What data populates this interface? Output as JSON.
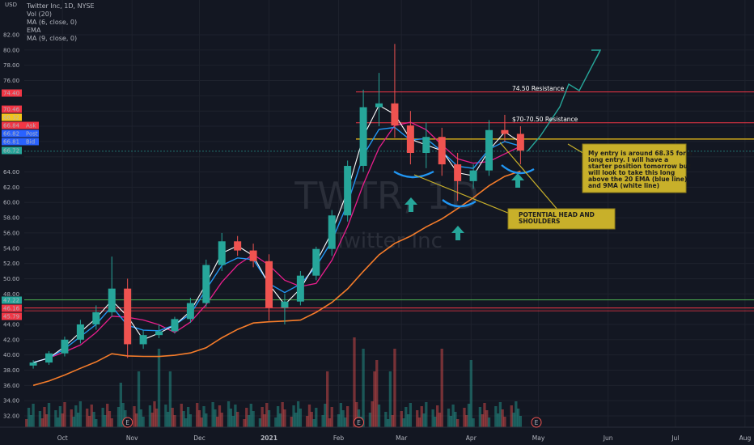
{
  "header": {
    "currency": "USD",
    "symbol_line": "Twitter Inc, 1D, NYSE",
    "indicators": [
      "Vol (20)",
      "MA (6, close, 0)",
      "EMA",
      "MA (9, close, 0)"
    ]
  },
  "watermark": {
    "ticker": "TWTR, 1D",
    "name": "Twitter Inc"
  },
  "colors": {
    "background": "#131722",
    "candle_up": "#26a69a",
    "candle_down": "#ef5350",
    "ma6": "#ffffff",
    "ema20": "#2196f3",
    "ma9": "#e91e8c",
    "ma200": "#f57c2a",
    "resistance": "#f23645",
    "support_green": "#4caf50",
    "note_fill": "#c8b02a"
  },
  "y_axis": {
    "ticks": [
      "82.00",
      "80.00",
      "78.00",
      "76.00",
      "74.40",
      "72.00",
      "70.46",
      "68.32",
      "66.84",
      "66.82",
      "66.81",
      "66.72",
      "64.00",
      "62.00",
      "60.00",
      "58.00",
      "56.00",
      "54.00",
      "52.00",
      "50.00",
      "48.00",
      "47.22",
      "46.16",
      "45.79",
      "44.00",
      "42.00",
      "40.00",
      "38.00",
      "36.00",
      "34.00",
      "32.00"
    ],
    "price_tags": [
      {
        "value": "74.40",
        "color": "#f23645"
      },
      {
        "value": "70.46",
        "color": "#f23645"
      },
      {
        "value": "68.32",
        "color": "#f5c518"
      },
      {
        "value": "66.84",
        "color": "#f23645",
        "label": "Ask"
      },
      {
        "value": "66.82",
        "color": "#2962ff",
        "label": "Post"
      },
      {
        "value": "66.81",
        "color": "#2962ff",
        "label": "Bid"
      },
      {
        "value": "66.72",
        "color": "#26a69a"
      },
      {
        "value": "47.22",
        "color": "#26a69a"
      },
      {
        "value": "46.16",
        "color": "#f23645"
      },
      {
        "value": "45.79",
        "color": "#f23645"
      }
    ]
  },
  "x_axis": {
    "labels": [
      "Oct",
      "Nov",
      "Dec",
      "2021",
      "Feb",
      "Mar",
      "Apr",
      "May",
      "Jun",
      "Jul",
      "Aug"
    ]
  },
  "annotations": {
    "resistance_1": "74.50 Resistance",
    "resistance_2": "$70-70.50 Resistance",
    "head_shoulders": "POTENTIAL HEAD AND SHOULDERS",
    "entry_note": "My entry is around 68.35 for a long entry. I will have a starter position tomorrow but will look to take this long above the 20 EMA (blue line) and 9MA (white line)",
    "earnings_marker": "E"
  },
  "chart_data": {
    "type": "candlestick",
    "title": "Twitter Inc, 1D, NYSE",
    "ylim": [
      31,
      83.5
    ],
    "x_range": [
      "2020-09-14",
      "2021-08-05"
    ],
    "ohlc": [
      {
        "date": "2020-09-18",
        "o": 38.6,
        "h": 39.3,
        "l": 38.2,
        "c": 39.0
      },
      {
        "date": "2020-09-25",
        "o": 39.0,
        "h": 40.5,
        "l": 38.7,
        "c": 40.2
      },
      {
        "date": "2020-10-02",
        "o": 40.2,
        "h": 42.4,
        "l": 39.8,
        "c": 42.0
      },
      {
        "date": "2020-10-09",
        "o": 42.0,
        "h": 44.6,
        "l": 41.5,
        "c": 44.0
      },
      {
        "date": "2020-10-16",
        "o": 44.0,
        "h": 46.5,
        "l": 43.3,
        "c": 45.6
      },
      {
        "date": "2020-10-23",
        "o": 45.6,
        "h": 52.9,
        "l": 45.0,
        "c": 48.7
      },
      {
        "date": "2020-10-30",
        "o": 48.7,
        "h": 50.0,
        "l": 39.6,
        "c": 41.4
      },
      {
        "date": "2020-11-06",
        "o": 41.4,
        "h": 43.2,
        "l": 40.8,
        "c": 42.6
      },
      {
        "date": "2020-11-13",
        "o": 42.6,
        "h": 44.0,
        "l": 42.2,
        "c": 43.1
      },
      {
        "date": "2020-11-20",
        "o": 43.1,
        "h": 45.0,
        "l": 42.8,
        "c": 44.7
      },
      {
        "date": "2020-11-27",
        "o": 44.7,
        "h": 47.5,
        "l": 44.2,
        "c": 46.8
      },
      {
        "date": "2020-12-04",
        "o": 46.8,
        "h": 52.5,
        "l": 46.3,
        "c": 51.8
      },
      {
        "date": "2020-12-11",
        "o": 51.8,
        "h": 56.0,
        "l": 51.0,
        "c": 54.9
      },
      {
        "date": "2020-12-18",
        "o": 54.9,
        "h": 55.6,
        "l": 53.0,
        "c": 53.7
      },
      {
        "date": "2020-12-25",
        "o": 53.7,
        "h": 54.6,
        "l": 51.5,
        "c": 52.3
      },
      {
        "date": "2021-01-01",
        "o": 52.3,
        "h": 53.2,
        "l": 44.5,
        "c": 46.2
      },
      {
        "date": "2021-01-08",
        "o": 46.2,
        "h": 48.0,
        "l": 44.0,
        "c": 47.0
      },
      {
        "date": "2021-01-15",
        "o": 47.0,
        "h": 51.0,
        "l": 46.5,
        "c": 50.4
      },
      {
        "date": "2021-01-22",
        "o": 50.4,
        "h": 54.2,
        "l": 49.8,
        "c": 53.9
      },
      {
        "date": "2021-01-29",
        "o": 53.9,
        "h": 59.0,
        "l": 53.0,
        "c": 58.3
      },
      {
        "date": "2021-02-05",
        "o": 58.3,
        "h": 65.5,
        "l": 57.5,
        "c": 64.8
      },
      {
        "date": "2021-02-12",
        "o": 64.8,
        "h": 74.8,
        "l": 64.0,
        "c": 72.5
      },
      {
        "date": "2021-02-19",
        "o": 72.5,
        "h": 77.0,
        "l": 70.0,
        "c": 73.0
      },
      {
        "date": "2021-02-26",
        "o": 73.0,
        "h": 80.8,
        "l": 68.5,
        "c": 70.1
      },
      {
        "date": "2021-03-05",
        "o": 70.1,
        "h": 72.0,
        "l": 65.0,
        "c": 66.5
      },
      {
        "date": "2021-03-12",
        "o": 66.5,
        "h": 70.5,
        "l": 64.5,
        "c": 68.6
      },
      {
        "date": "2021-03-19",
        "o": 68.6,
        "h": 69.8,
        "l": 63.5,
        "c": 65.0
      },
      {
        "date": "2021-03-26",
        "o": 65.0,
        "h": 66.5,
        "l": 60.2,
        "c": 62.8
      },
      {
        "date": "2021-04-02",
        "o": 62.8,
        "h": 65.0,
        "l": 61.8,
        "c": 64.2
      },
      {
        "date": "2021-04-09",
        "o": 64.2,
        "h": 70.8,
        "l": 63.5,
        "c": 69.5
      },
      {
        "date": "2021-04-16",
        "o": 69.5,
        "h": 71.5,
        "l": 68.0,
        "c": 69.0
      },
      {
        "date": "2021-04-23",
        "o": 69.0,
        "h": 70.0,
        "l": 65.0,
        "c": 66.8
      }
    ],
    "levels": [
      {
        "name": "74.50 Resistance",
        "value": 74.5
      },
      {
        "name": "$70-70.50 Resistance",
        "value": 70.46
      },
      {
        "name": "entry",
        "value": 68.32
      },
      {
        "name": "support",
        "value": 47.22
      },
      {
        "name": "support",
        "value": 46.16
      }
    ],
    "grid": true,
    "legend": "top-left"
  }
}
